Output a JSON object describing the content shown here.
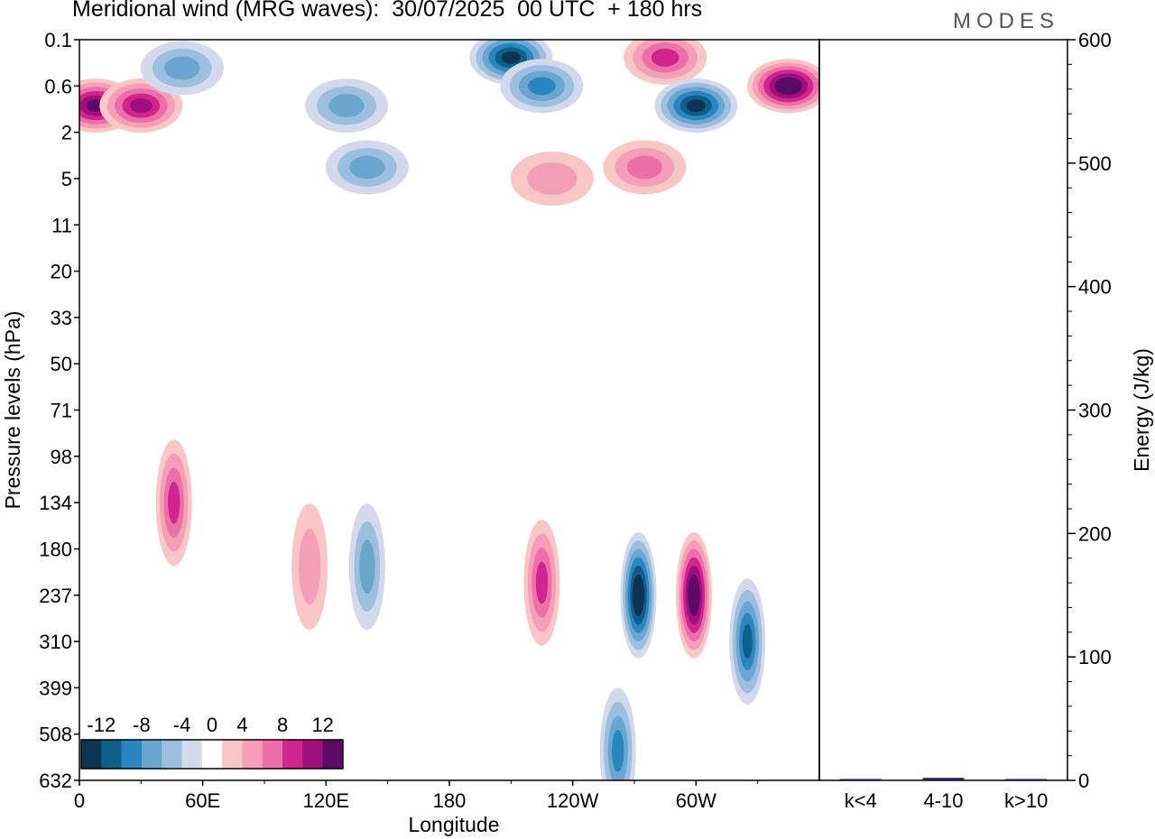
{
  "chart_data": [
    {
      "type": "heatmap",
      "title": "Meridional wind (MRG waves):  30/07/2025  00 UTC  + 180 hrs",
      "xlabel": "Longitude",
      "ylabel": "Pressure levels (hPa)",
      "x_ticks": [
        "0",
        "60E",
        "120E",
        "180",
        "120W",
        "60W"
      ],
      "x_tick_values_deg_east": [
        0,
        60,
        120,
        180,
        240,
        300
      ],
      "xlim_deg_east": [
        0,
        360
      ],
      "y_ticks": [
        "0.1",
        "0.6",
        "2",
        "5",
        "11",
        "20",
        "33",
        "50",
        "71",
        "98",
        "134",
        "180",
        "237",
        "310",
        "399",
        "508",
        "632"
      ],
      "colorbar": {
        "labels": [
          "-12",
          "-8",
          "-4",
          "0",
          "4",
          "8",
          "12"
        ],
        "levels": [
          -14,
          -12,
          -10,
          -8,
          -6,
          -4,
          -2,
          2,
          4,
          6,
          8,
          10,
          12,
          14
        ],
        "colors": [
          "#0b3552",
          "#0e5f8c",
          "#2a86bf",
          "#6aa6d0",
          "#9dbfdf",
          "#d3d9eb",
          "#ffffff",
          "#f9c6c6",
          "#f59eb7",
          "#ec6fa9",
          "#d2248f",
          "#a10f7e",
          "#5b0a66"
        ]
      },
      "features": [
        {
          "lon": 8,
          "level": "1",
          "value": 13
        },
        {
          "lon": 30,
          "level": "1",
          "value": 10
        },
        {
          "lon": 50,
          "level": "0.3",
          "value": -6
        },
        {
          "lon": 130,
          "level": "1",
          "value": -6
        },
        {
          "lon": 140,
          "level": "4",
          "value": -7
        },
        {
          "lon": 210,
          "level": "0.2",
          "value": -12
        },
        {
          "lon": 225,
          "level": "0.6",
          "value": -8
        },
        {
          "lon": 285,
          "level": "0.2",
          "value": 8
        },
        {
          "lon": 300,
          "level": "1",
          "value": -13
        },
        {
          "lon": 345,
          "level": "0.6",
          "value": 15
        },
        {
          "lon": 275,
          "level": "4",
          "value": 6
        },
        {
          "lon": 230,
          "level": "5",
          "value": 5
        },
        {
          "lon": 46,
          "level": "134",
          "value": 8
        },
        {
          "lon": 112,
          "level": "200",
          "value": 5
        },
        {
          "lon": 140,
          "level": "200",
          "value": -7
        },
        {
          "lon": 225,
          "level": "220",
          "value": 8
        },
        {
          "lon": 272,
          "level": "237",
          "value": -14
        },
        {
          "lon": 299,
          "level": "237",
          "value": 14
        },
        {
          "lon": 325,
          "level": "310",
          "value": -10
        },
        {
          "lon": 262,
          "level": "550",
          "value": -8
        }
      ]
    },
    {
      "type": "bar",
      "title": "",
      "categories": [
        "k<4",
        "4-10",
        "k>10"
      ],
      "values": [
        0,
        2,
        0
      ],
      "ylabel": "Energy (J/kg)",
      "ylim": [
        0,
        600
      ],
      "y_ticks": [
        "0",
        "100",
        "200",
        "300",
        "400",
        "500",
        "600"
      ]
    }
  ],
  "brand": "MODES"
}
